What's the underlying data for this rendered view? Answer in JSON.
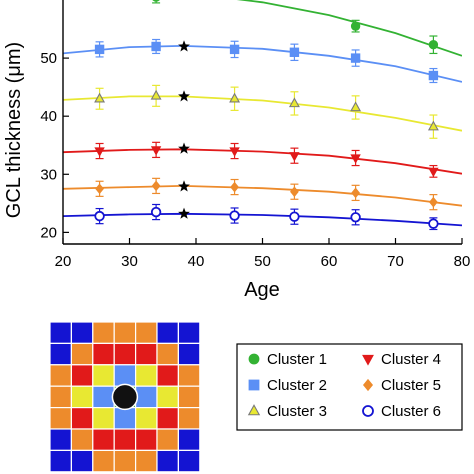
{
  "chart_data": {
    "type": "line",
    "xlabel": "Age",
    "ylabel": "GCL thickness (μm)",
    "xlim": [
      20,
      80
    ],
    "ylim": [
      18,
      60
    ],
    "x_ticks": [
      20,
      30,
      40,
      50,
      60,
      70,
      80
    ],
    "y_ticks": [
      20,
      30,
      40,
      50
    ],
    "ages": [
      25.5,
      34,
      45.8,
      54.8,
      64,
      75.7
    ],
    "star_age": 38.2,
    "series": [
      {
        "name": "Cluster 1",
        "color": "#33b233",
        "marker": "circle",
        "fill": true,
        "values": [
          null,
          60.5,
          null,
          null,
          55.5,
          52.3
        ],
        "errors": [
          0,
          1.0,
          0,
          0,
          1.0,
          1.5
        ],
        "fit": [
          [
            25,
            62.0
          ],
          [
            38,
            61.3
          ],
          [
            50,
            59.6
          ],
          [
            60,
            57.4
          ],
          [
            70,
            54.3
          ],
          [
            80,
            50.4
          ]
        ],
        "star_value": null
      },
      {
        "name": "Cluster 2",
        "color": "#5b8ff5",
        "marker": "square",
        "fill": true,
        "values": [
          51.5,
          52.0,
          51.5,
          51.0,
          50.0,
          47.0
        ],
        "errors": [
          1.3,
          1.2,
          1.4,
          1.4,
          1.4,
          1.2
        ],
        "fit": [
          [
            20,
            50.8
          ],
          [
            30,
            51.9
          ],
          [
            38,
            52.1
          ],
          [
            50,
            51.6
          ],
          [
            60,
            50.4
          ],
          [
            70,
            48.6
          ],
          [
            80,
            45.9
          ]
        ],
        "star_value": 52.0
      },
      {
        "name": "Cluster 3",
        "color": "#e8e832",
        "marker": "triangle",
        "fill": true,
        "values": [
          43.0,
          43.5,
          43.0,
          42.2,
          41.5,
          38.2
        ],
        "errors": [
          1.8,
          1.8,
          2.0,
          2.0,
          2.0,
          2.0
        ],
        "fit": [
          [
            20,
            42.8
          ],
          [
            30,
            43.4
          ],
          [
            38,
            43.4
          ],
          [
            50,
            42.7
          ],
          [
            60,
            41.5
          ],
          [
            70,
            39.7
          ],
          [
            80,
            37.5
          ]
        ],
        "star_value": 43.4
      },
      {
        "name": "Cluster 4",
        "color": "#e11a1a",
        "marker": "triangle-down",
        "fill": true,
        "values": [
          34.0,
          34.2,
          34.0,
          33.2,
          32.8,
          30.5
        ],
        "errors": [
          1.3,
          1.3,
          1.3,
          1.3,
          1.3,
          1.0
        ],
        "fit": [
          [
            20,
            33.8
          ],
          [
            30,
            34.2
          ],
          [
            38,
            34.3
          ],
          [
            50,
            33.9
          ],
          [
            60,
            33.2
          ],
          [
            70,
            31.9
          ],
          [
            80,
            30.1
          ]
        ],
        "star_value": 34.4
      },
      {
        "name": "Cluster 5",
        "color": "#ed8b2c",
        "marker": "diamond",
        "fill": true,
        "values": [
          27.5,
          28.0,
          27.8,
          27.0,
          26.8,
          25.2
        ],
        "errors": [
          1.3,
          1.3,
          1.3,
          1.3,
          1.3,
          1.3
        ],
        "fit": [
          [
            20,
            27.5
          ],
          [
            30,
            27.8
          ],
          [
            38,
            28.0
          ],
          [
            50,
            27.6
          ],
          [
            60,
            27.0
          ],
          [
            70,
            26.0
          ],
          [
            80,
            24.6
          ]
        ],
        "star_value": 27.9
      },
      {
        "name": "Cluster 6",
        "color": "#1414d2",
        "marker": "circle",
        "fill": false,
        "values": [
          22.8,
          23.5,
          22.9,
          22.7,
          22.6,
          21.5
        ],
        "errors": [
          1.3,
          1.3,
          1.3,
          1.3,
          1.3,
          1.0
        ],
        "fit": [
          [
            20,
            22.8
          ],
          [
            30,
            23.1
          ],
          [
            38,
            23.2
          ],
          [
            50,
            23.0
          ],
          [
            60,
            22.6
          ],
          [
            70,
            22.0
          ],
          [
            80,
            21.2
          ]
        ],
        "star_value": 23.2
      }
    ]
  },
  "grid_map": {
    "colors": {
      "1": "#33b233",
      "2": "#5b8ff5",
      "3": "#e8e832",
      "4": "#e11a1a",
      "5": "#ed8b2c",
      "6": "#1414d2"
    },
    "rows": [
      [
        6,
        6,
        5,
        5,
        5,
        6,
        6
      ],
      [
        6,
        5,
        4,
        4,
        4,
        5,
        6
      ],
      [
        5,
        4,
        3,
        2,
        3,
        4,
        5
      ],
      [
        5,
        3,
        2,
        1,
        2,
        3,
        5
      ],
      [
        5,
        4,
        3,
        2,
        3,
        4,
        5
      ],
      [
        6,
        5,
        4,
        4,
        4,
        5,
        6
      ],
      [
        6,
        6,
        5,
        5,
        5,
        6,
        6
      ]
    ],
    "center_color": "#111111"
  },
  "legend": [
    {
      "label": "Cluster 1",
      "marker": "circle",
      "color": "#33b233",
      "fill": true
    },
    {
      "label": "Cluster 4",
      "marker": "triangle-down",
      "color": "#e11a1a",
      "fill": true
    },
    {
      "label": "Cluster 2",
      "marker": "square",
      "color": "#5b8ff5",
      "fill": true
    },
    {
      "label": "Cluster 5",
      "marker": "diamond",
      "color": "#ed8b2c",
      "fill": true
    },
    {
      "label": "Cluster 3",
      "marker": "triangle",
      "color": "#e8e832",
      "fill": true
    },
    {
      "label": "Cluster 6",
      "marker": "circle",
      "color": "#1414d2",
      "fill": false
    }
  ]
}
